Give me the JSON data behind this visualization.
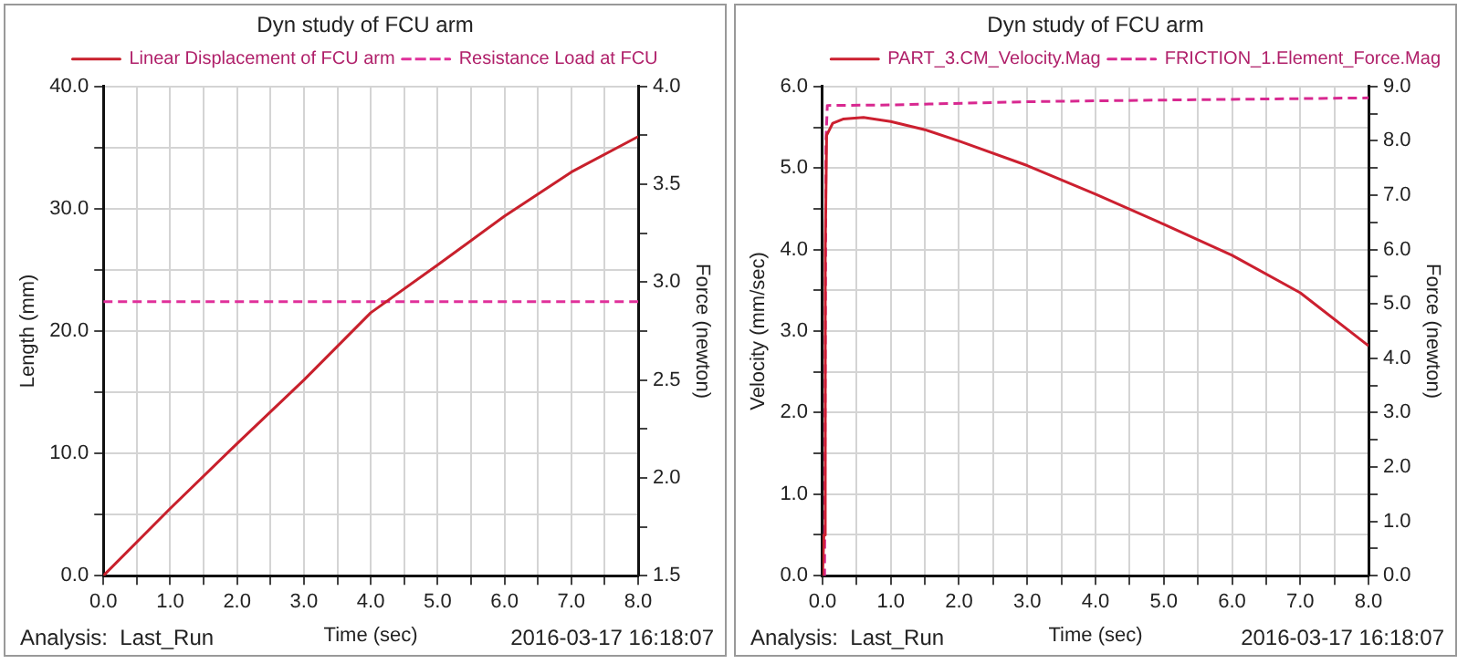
{
  "chart_data": [
    {
      "type": "line",
      "title": "Dyn study of FCU arm",
      "xlabel": "Time (sec)",
      "ylabel": "Length (mm)",
      "y2label": "Force (newton)",
      "series": [
        {
          "name": "Linear Displacement of FCU arm",
          "color": "#c8202c",
          "line_style": "solid",
          "x": [
            0,
            1,
            2,
            3,
            4,
            5,
            6,
            7,
            8
          ],
          "values": [
            0,
            5.5,
            10.8,
            16.0,
            21.5,
            25.4,
            29.4,
            33.0,
            35.9
          ]
        },
        {
          "name": "Resistance Load at FCU",
          "color": "#e0309a",
          "line_style": "dashed",
          "axis": "y2",
          "x": [
            0,
            8
          ],
          "values": [
            2.9,
            2.9
          ]
        }
      ],
      "xlim": [
        0,
        8
      ],
      "xticks": [
        {
          "value": 0,
          "label": "0.0"
        },
        {
          "value": 0.5,
          "label": null
        },
        {
          "value": 1,
          "label": "1.0"
        },
        {
          "value": 1.5,
          "label": null
        },
        {
          "value": 2,
          "label": "2.0"
        },
        {
          "value": 2.5,
          "label": null
        },
        {
          "value": 3,
          "label": "3.0"
        },
        {
          "value": 3.5,
          "label": null
        },
        {
          "value": 4,
          "label": "4.0"
        },
        {
          "value": 4.5,
          "label": null
        },
        {
          "value": 5,
          "label": "5.0"
        },
        {
          "value": 5.5,
          "label": null
        },
        {
          "value": 6,
          "label": "6.0"
        },
        {
          "value": 6.5,
          "label": null
        },
        {
          "value": 7,
          "label": "7.0"
        },
        {
          "value": 7.5,
          "label": null
        },
        {
          "value": 8,
          "label": "8.0"
        }
      ],
      "ylim": [
        0,
        40
      ],
      "yticks": [
        {
          "value": 0,
          "label": "0.0"
        },
        {
          "value": 5,
          "label": null
        },
        {
          "value": 10,
          "label": "10.0"
        },
        {
          "value": 15,
          "label": null
        },
        {
          "value": 20,
          "label": "20.0"
        },
        {
          "value": 25,
          "label": null
        },
        {
          "value": 30,
          "label": "30.0"
        },
        {
          "value": 35,
          "label": null
        },
        {
          "value": 40,
          "label": "40.0"
        }
      ],
      "y2lim": [
        1.5,
        4
      ],
      "y2ticks": [
        {
          "value": 1.5,
          "label": "1.5"
        },
        {
          "value": 1.75,
          "label": null
        },
        {
          "value": 2,
          "label": "2.0"
        },
        {
          "value": 2.25,
          "label": null
        },
        {
          "value": 2.5,
          "label": "2.5"
        },
        {
          "value": 2.75,
          "label": null
        },
        {
          "value": 3,
          "label": "3.0"
        },
        {
          "value": 3.25,
          "label": null
        },
        {
          "value": 3.5,
          "label": "3.5"
        },
        {
          "value": 3.75,
          "label": null
        },
        {
          "value": 4,
          "label": "4.0"
        }
      ],
      "grid": true,
      "legend": "top",
      "annotations": [
        "Analysis:  Last_Run",
        "2016-03-17 16:18:07"
      ]
    },
    {
      "type": "line",
      "title": "Dyn study of FCU arm",
      "xlabel": "Time (sec)",
      "ylabel": "Velocity (mm/sec)",
      "y2label": "Force (newton)",
      "series": [
        {
          "name": "PART_3.CM_Velocity.Mag",
          "color": "#cc2030",
          "line_style": "solid",
          "x": [
            0,
            0.02,
            0.04,
            0.06,
            0.15,
            0.3,
            0.6,
            1,
            1.5,
            2,
            3,
            4,
            5,
            6,
            7,
            8
          ],
          "values": [
            0,
            0.5,
            4.0,
            5.4,
            5.55,
            5.6,
            5.62,
            5.57,
            5.47,
            5.33,
            5.03,
            4.68,
            4.31,
            3.93,
            3.47,
            2.82
          ]
        },
        {
          "name": "FRICTION_1.Element_Force.Mag",
          "color": "#d82890",
          "line_style": "dashed",
          "axis": "y2",
          "x": [
            0,
            0.03,
            0.05,
            0.07,
            1,
            3,
            5,
            8
          ],
          "values": [
            0,
            0,
            8.0,
            8.65,
            8.66,
            8.72,
            8.75,
            8.79
          ]
        }
      ],
      "xlim": [
        0,
        8
      ],
      "xticks": [
        {
          "value": 0,
          "label": "0.0"
        },
        {
          "value": 0.5,
          "label": null
        },
        {
          "value": 1,
          "label": "1.0"
        },
        {
          "value": 1.5,
          "label": null
        },
        {
          "value": 2,
          "label": "2.0"
        },
        {
          "value": 2.5,
          "label": null
        },
        {
          "value": 3,
          "label": "3.0"
        },
        {
          "value": 3.5,
          "label": null
        },
        {
          "value": 4,
          "label": "4.0"
        },
        {
          "value": 4.5,
          "label": null
        },
        {
          "value": 5,
          "label": "5.0"
        },
        {
          "value": 5.5,
          "label": null
        },
        {
          "value": 6,
          "label": "6.0"
        },
        {
          "value": 6.5,
          "label": null
        },
        {
          "value": 7,
          "label": "7.0"
        },
        {
          "value": 7.5,
          "label": null
        },
        {
          "value": 8,
          "label": "8.0"
        }
      ],
      "ylim": [
        0,
        6
      ],
      "yticks": [
        {
          "value": 0,
          "label": "0.0"
        },
        {
          "value": 0.5,
          "label": null
        },
        {
          "value": 1,
          "label": "1.0"
        },
        {
          "value": 1.5,
          "label": null
        },
        {
          "value": 2,
          "label": "2.0"
        },
        {
          "value": 2.5,
          "label": null
        },
        {
          "value": 3,
          "label": "3.0"
        },
        {
          "value": 3.5,
          "label": null
        },
        {
          "value": 4,
          "label": "4.0"
        },
        {
          "value": 4.5,
          "label": null
        },
        {
          "value": 5,
          "label": "5.0"
        },
        {
          "value": 5.5,
          "label": null
        },
        {
          "value": 6,
          "label": "6.0"
        }
      ],
      "y2lim": [
        0,
        9
      ],
      "y2ticks": [
        {
          "value": 0,
          "label": "0.0"
        },
        {
          "value": 0.5,
          "label": null
        },
        {
          "value": 1,
          "label": "1.0"
        },
        {
          "value": 1.5,
          "label": null
        },
        {
          "value": 2,
          "label": "2.0"
        },
        {
          "value": 2.5,
          "label": null
        },
        {
          "value": 3,
          "label": "3.0"
        },
        {
          "value": 3.5,
          "label": null
        },
        {
          "value": 4,
          "label": "4.0"
        },
        {
          "value": 4.5,
          "label": null
        },
        {
          "value": 5,
          "label": "5.0"
        },
        {
          "value": 5.5,
          "label": null
        },
        {
          "value": 6,
          "label": "6.0"
        },
        {
          "value": 6.5,
          "label": null
        },
        {
          "value": 7,
          "label": "7.0"
        },
        {
          "value": 7.5,
          "label": null
        },
        {
          "value": 8,
          "label": "8.0"
        },
        {
          "value": 8.5,
          "label": null
        },
        {
          "value": 9,
          "label": "9.0"
        }
      ],
      "grid": true,
      "legend": "top right",
      "annotations": [
        "Analysis:  Last_Run",
        "2016-03-17 16:18:07"
      ]
    }
  ]
}
